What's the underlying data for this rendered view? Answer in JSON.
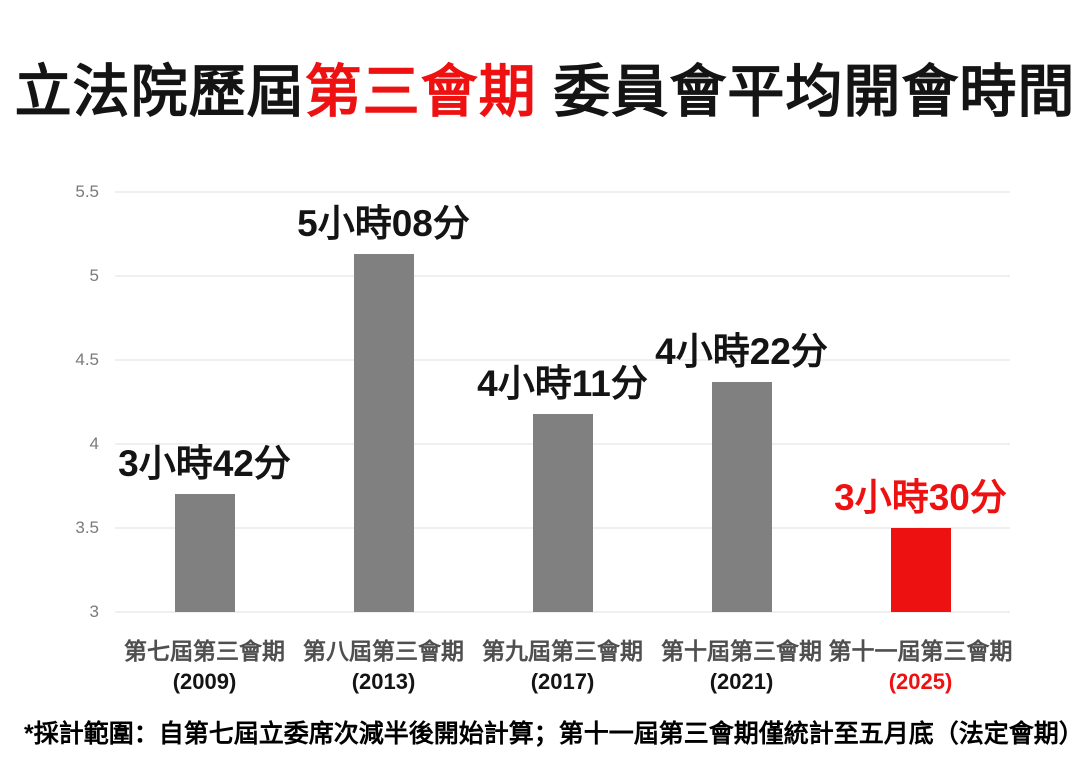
{
  "title": {
    "prefix": "立法院歷屆",
    "highlight": "第三會期",
    "suffix": " 委員會平均開會時間"
  },
  "footnote": "*採計範圍：自第七屆立委席次減半後開始計算；第十一屆第三會期僅統計至五月底（法定會期）",
  "colors": {
    "background": "#ffffff",
    "bar_gray": "#808080",
    "bar_red": "#ee1111",
    "highlight_red": "#ee1111",
    "grid_line": "#efefef",
    "tick_label": "#7a7a7a",
    "session_label": "#4f4f4f",
    "year_label": "#141414",
    "title_text": "#141414"
  },
  "chart_data": {
    "type": "bar",
    "title": "立法院歷屆第三會期 委員會平均開會時間",
    "xlabel": "",
    "ylabel": "",
    "categories": [
      "第七屆第三會期",
      "第八屆第三會期",
      "第九屆第三會期",
      "第十屆第三會期",
      "第十一屆第三會期"
    ],
    "years": [
      "(2009)",
      "(2013)",
      "(2017)",
      "(2021)",
      "(2025)"
    ],
    "values": [
      3.7,
      5.13,
      4.18,
      4.37,
      3.5
    ],
    "value_labels": [
      "3小時42分",
      "5小時08分",
      "4小時11分",
      "4小時22分",
      "3小時30分"
    ],
    "unit": "小時",
    "highlight_index": 4,
    "ylim": [
      3,
      5.5
    ],
    "yticks": [
      3,
      3.5,
      4,
      4.5,
      5,
      5.5
    ],
    "grid": true,
    "legend": false,
    "footnote": "*採計範圍：自第七屆立委席次減半後開始計算；第十一屆第三會期僅統計至五月底（法定會期）"
  }
}
